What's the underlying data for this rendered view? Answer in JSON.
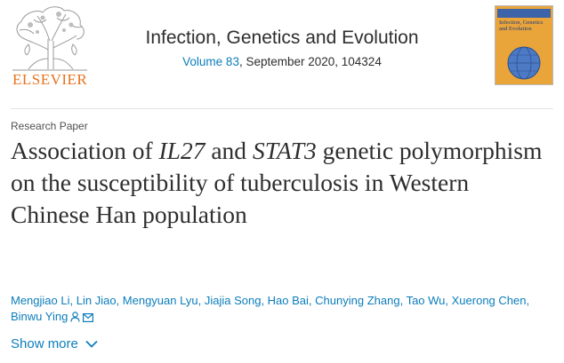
{
  "header": {
    "publisher": "ELSEVIER",
    "journal_title": "Infection, Genetics and Evolution",
    "volume_link": "Volume 83",
    "issue_details": ", September 2020, 104324",
    "cover_title": "Infection, Genetics and Evolution"
  },
  "article": {
    "type": "Research Paper",
    "title_parts": {
      "p1": "Association of ",
      "gene1": "IL27",
      "p2": " and ",
      "gene2": "STAT3",
      "p3": " genetic polymorphism on the susceptibility of tuberculosis in Western Chinese Han population"
    },
    "authors": [
      "Mengjiao Li",
      "Lin Jiao",
      "Mengyuan Lyu",
      "Jiajia Song",
      "Hao Bai",
      "Chunying Zhang",
      "Tao Wu",
      "Xuerong Chen",
      "Binwu Ying"
    ],
    "separator": ", ",
    "show_more_label": "Show more"
  },
  "colors": {
    "link": "#0c7dbb",
    "publisher_orange": "#e9711c",
    "text": "#2e2e2e"
  },
  "icons": {
    "author_contact": [
      "person-icon",
      "mail-icon"
    ],
    "show_more": "chevron-down-icon"
  }
}
